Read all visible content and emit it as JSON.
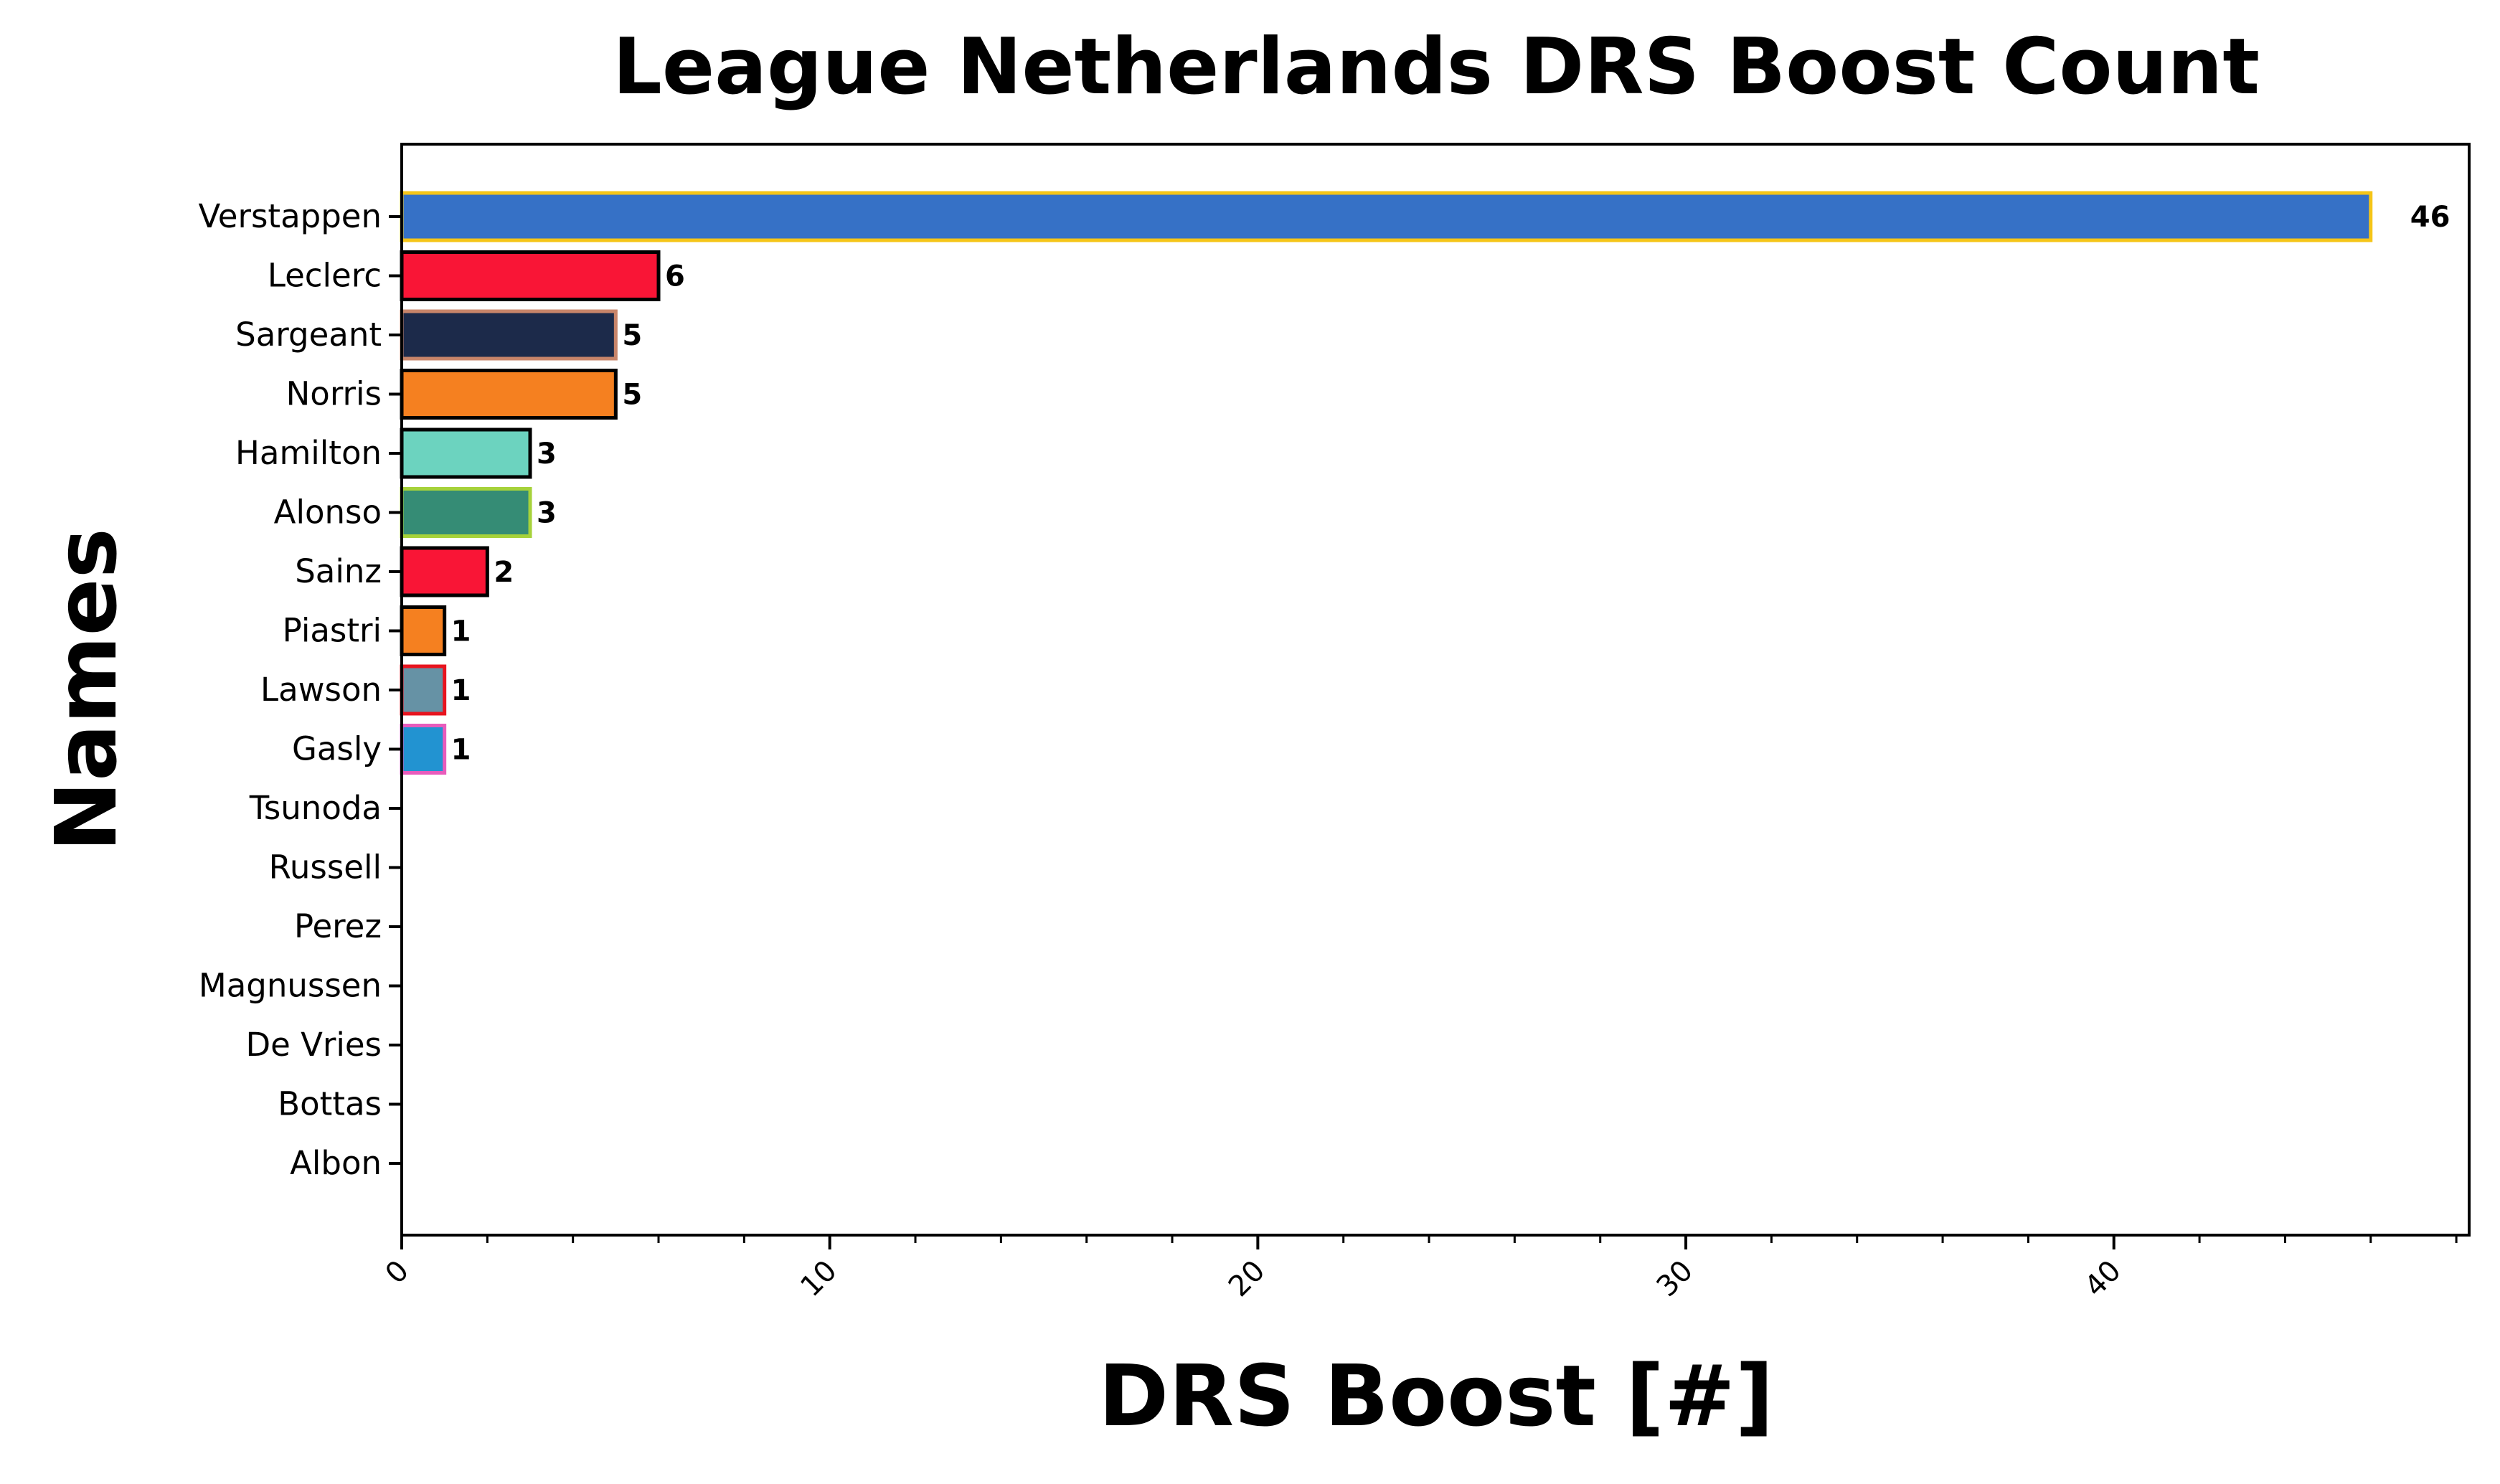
{
  "chart_data": {
    "type": "bar",
    "orientation": "horizontal",
    "title": "League Netherlands DRS Boost Count",
    "xlabel": "DRS Boost [#]",
    "ylabel": "Names",
    "xlim": [
      0,
      48.3
    ],
    "xticks": [
      0,
      10,
      20,
      30,
      40
    ],
    "x_minor_step": 2,
    "grid": false,
    "categories": [
      "Verstappen",
      "Leclerc",
      "Sargeant",
      "Norris",
      "Hamilton",
      "Alonso",
      "Sainz",
      "Piastri",
      "Lawson",
      "Gasly",
      "Tsunoda",
      "Russell",
      "Perez",
      "Magnussen",
      "De Vries",
      "Bottas",
      "Albon"
    ],
    "values": [
      46,
      6,
      5,
      5,
      3,
      3,
      2,
      1,
      1,
      1,
      0,
      0,
      0,
      0,
      0,
      0,
      0
    ],
    "bar_labels": [
      "46",
      "6",
      "5",
      "5",
      "3",
      "3",
      "2",
      "1",
      "1",
      "1",
      "",
      "",
      "",
      "",
      "",
      "",
      ""
    ],
    "fill_colors": [
      "#3671C6",
      "#F91536",
      "#1C2A4A",
      "#F58020",
      "#6CD3BF",
      "#358C75",
      "#F91536",
      "#F58020",
      "#6692A5",
      "#2293D1",
      "#5E8FAA",
      "#6CD3BF",
      "#3671C6",
      "#B6BABD",
      "#5E8FAA",
      "#C92D4B",
      "#37BEDD"
    ],
    "edge_colors": [
      "#F5C518",
      "#000000",
      "#C8856A",
      "#000000",
      "#000000",
      "#A6D23A",
      "#000000",
      "#000000",
      "#E8141E",
      "#E85CBC",
      "#000000",
      "#000000",
      "#000000",
      "#000000",
      "#000000",
      "#000000",
      "#000000"
    ]
  }
}
